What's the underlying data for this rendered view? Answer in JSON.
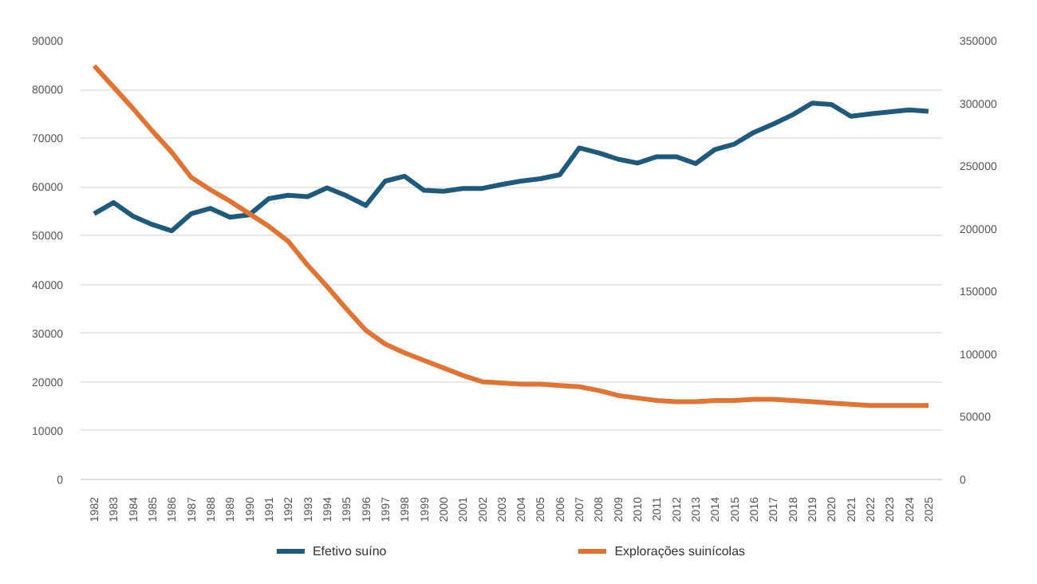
{
  "chart_data": {
    "type": "line",
    "categories": [
      "1982",
      "1983",
      "1984",
      "1985",
      "1986",
      "1987",
      "1988",
      "1989",
      "1990",
      "1991",
      "1992",
      "1993",
      "1994",
      "1995",
      "1996",
      "1997",
      "1998",
      "1999",
      "2000",
      "2001",
      "2002",
      "2003",
      "2004",
      "2005",
      "2006",
      "2007",
      "2008",
      "2009",
      "2010",
      "2011",
      "2012",
      "2013",
      "2014",
      "2015",
      "2016",
      "2017",
      "2018",
      "2019",
      "2020",
      "2021",
      "2022",
      "2023",
      "2024",
      "2025"
    ],
    "series": [
      {
        "name": "Efetivo suíno",
        "color": "#1f5a7a",
        "values": [
          54500,
          56800,
          54000,
          52300,
          51000,
          54500,
          55600,
          53800,
          54300,
          57600,
          58300,
          58000,
          59800,
          58200,
          56200,
          61200,
          62200,
          59300,
          59100,
          59700,
          59700,
          60500,
          61200,
          61700,
          62500,
          68000,
          67000,
          65700,
          64900,
          66200,
          66200,
          64800,
          67700,
          68800,
          71200,
          72900,
          74800,
          77200,
          76900,
          74500,
          75000,
          75400,
          75800,
          75500
        ]
      },
      {
        "name": "Explorações suinícolas",
        "color": "#e07434",
        "axis": "y2",
        "values": [
          330000,
          313000,
          296000,
          278000,
          261000,
          241000,
          231000,
          222000,
          212000,
          202000,
          190000,
          171000,
          154000,
          136000,
          119000,
          108000,
          101000,
          95000,
          89000,
          83000,
          78000,
          77000,
          76000,
          76000,
          75000,
          74000,
          71000,
          67000,
          65000,
          63000,
          62000,
          62000,
          63000,
          63000,
          64000,
          64000,
          63000,
          62000,
          61000,
          60000,
          59000,
          59000,
          59000,
          59000
        ]
      }
    ],
    "ylim": [
      0,
      90000
    ],
    "yticks": [
      0,
      10000,
      20000,
      30000,
      40000,
      50000,
      60000,
      70000,
      80000,
      90000
    ],
    "y2lim": [
      0,
      350000
    ],
    "y2ticks": [
      0,
      50000,
      100000,
      150000,
      200000,
      250000,
      300000,
      350000
    ],
    "grid": "y",
    "legend": "bottom",
    "marker": "none",
    "line_style": "solid"
  }
}
